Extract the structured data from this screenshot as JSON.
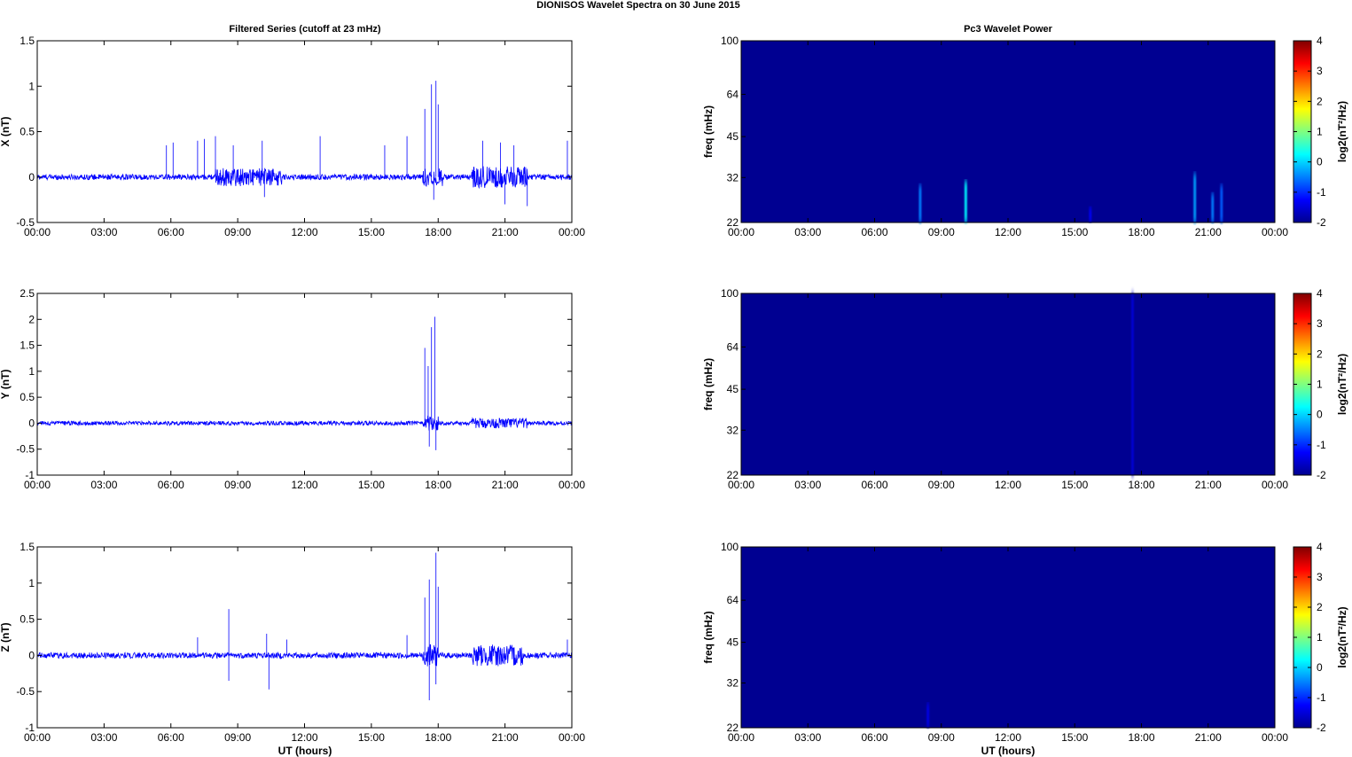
{
  "figure": {
    "title": "DIONISOS Wavelet Spectra on 30 June      2015",
    "left_column_title": "Filtered Series (cutoff at 23 mHz)",
    "right_column_title": "Pc3 Wavelet Power",
    "x_axis_label": "UT (hours)"
  },
  "chart_data": [
    {
      "type": "line",
      "name": "X",
      "ylabel": "X (nT)",
      "xlim_hours": [
        0,
        24
      ],
      "ylim": [
        -0.5,
        1.5
      ],
      "x_ticks": [
        "00:00",
        "03:00",
        "06:00",
        "09:00",
        "12:00",
        "15:00",
        "18:00",
        "21:00",
        "00:00"
      ],
      "y_ticks": [
        -0.5,
        0,
        0.5,
        1,
        1.5
      ],
      "y_tick_labels": [
        "-0.5",
        "0",
        "0.5",
        "1",
        "1.5"
      ],
      "line_color": "#0000ff",
      "baseline_amplitude_nT": 0.03,
      "active_intervals": [
        {
          "start": 8.0,
          "end": 11.0,
          "amplitude": 0.1
        },
        {
          "start": 19.5,
          "end": 22.0,
          "amplitude": 0.12
        },
        {
          "start": 17.3,
          "end": 18.2,
          "amplitude": 0.1
        }
      ],
      "spikes": [
        {
          "x": 5.8,
          "y": 0.35
        },
        {
          "x": 6.1,
          "y": 0.38
        },
        {
          "x": 7.2,
          "y": 0.4
        },
        {
          "x": 7.5,
          "y": 0.42
        },
        {
          "x": 8.0,
          "y": 0.45
        },
        {
          "x": 8.8,
          "y": 0.35
        },
        {
          "x": 10.1,
          "y": 0.4
        },
        {
          "x": 12.7,
          "y": 0.45
        },
        {
          "x": 15.6,
          "y": 0.35
        },
        {
          "x": 16.6,
          "y": 0.45
        },
        {
          "x": 17.4,
          "y": 0.75
        },
        {
          "x": 17.7,
          "y": 1.02
        },
        {
          "x": 17.9,
          "y": 1.06
        },
        {
          "x": 18.0,
          "y": 0.8
        },
        {
          "x": 20.0,
          "y": 0.4
        },
        {
          "x": 20.8,
          "y": 0.38
        },
        {
          "x": 21.4,
          "y": 0.35
        },
        {
          "x": 23.8,
          "y": 0.4
        },
        {
          "x": 10.2,
          "y": -0.22
        },
        {
          "x": 17.8,
          "y": -0.25
        },
        {
          "x": 21.0,
          "y": -0.3
        },
        {
          "x": 22.0,
          "y": -0.32
        }
      ]
    },
    {
      "type": "line",
      "name": "Y",
      "ylabel": "Y (nT)",
      "xlim_hours": [
        0,
        24
      ],
      "ylim": [
        -1,
        2.5
      ],
      "x_ticks": [
        "00:00",
        "03:00",
        "06:00",
        "09:00",
        "12:00",
        "15:00",
        "18:00",
        "21:00",
        "00:00"
      ],
      "y_ticks": [
        -1,
        -0.5,
        0,
        0.5,
        1,
        1.5,
        2,
        2.5
      ],
      "y_tick_labels": [
        "-1",
        "-0.5",
        "0",
        "0.5",
        "1",
        "1.5",
        "2",
        "2.5"
      ],
      "line_color": "#0000ff",
      "baseline_amplitude_nT": 0.04,
      "active_intervals": [
        {
          "start": 19.5,
          "end": 22.0,
          "amplitude": 0.1
        },
        {
          "start": 17.3,
          "end": 18.0,
          "amplitude": 0.15
        }
      ],
      "spikes": [
        {
          "x": 17.4,
          "y": 1.45
        },
        {
          "x": 17.55,
          "y": 1.1
        },
        {
          "x": 17.7,
          "y": 1.85
        },
        {
          "x": 17.85,
          "y": 2.05
        },
        {
          "x": 17.6,
          "y": -0.45
        },
        {
          "x": 17.9,
          "y": -0.52
        }
      ]
    },
    {
      "type": "line",
      "name": "Z",
      "ylabel": "Z (nT)",
      "xlim_hours": [
        0,
        24
      ],
      "ylim": [
        -1,
        1.5
      ],
      "x_ticks": [
        "00:00",
        "03:00",
        "06:00",
        "09:00",
        "12:00",
        "15:00",
        "18:00",
        "21:00",
        "00:00"
      ],
      "y_ticks": [
        -1,
        -0.5,
        0,
        0.5,
        1,
        1.5
      ],
      "y_tick_labels": [
        "-1",
        "-0.5",
        "0",
        "0.5",
        "1",
        "1.5"
      ],
      "line_color": "#0000ff",
      "baseline_amplitude_nT": 0.04,
      "active_intervals": [
        {
          "start": 19.5,
          "end": 21.8,
          "amplitude": 0.15
        },
        {
          "start": 17.3,
          "end": 18.0,
          "amplitude": 0.15
        }
      ],
      "spikes": [
        {
          "x": 7.2,
          "y": 0.25
        },
        {
          "x": 8.6,
          "y": 0.64
        },
        {
          "x": 10.3,
          "y": 0.3
        },
        {
          "x": 11.2,
          "y": 0.22
        },
        {
          "x": 16.6,
          "y": 0.28
        },
        {
          "x": 17.4,
          "y": 0.8
        },
        {
          "x": 17.6,
          "y": 1.05
        },
        {
          "x": 17.9,
          "y": 1.42
        },
        {
          "x": 18.0,
          "y": 0.95
        },
        {
          "x": 23.8,
          "y": 0.22
        },
        {
          "x": 8.6,
          "y": -0.35
        },
        {
          "x": 10.4,
          "y": -0.47
        },
        {
          "x": 17.6,
          "y": -0.62
        },
        {
          "x": 17.9,
          "y": -0.4
        }
      ]
    },
    {
      "type": "heatmap",
      "name": "X-wavelet",
      "ylabel": "freq (mHz)",
      "xlim_hours": [
        0,
        24
      ],
      "ylim_mHz": [
        22,
        100
      ],
      "y_scale": "log",
      "x_ticks": [
        "00:00",
        "03:00",
        "06:00",
        "09:00",
        "12:00",
        "15:00",
        "18:00",
        "21:00",
        "00:00"
      ],
      "y_ticks": [
        22,
        32,
        45,
        64,
        100
      ],
      "colorbar_label": "log2(nT²/Hz)",
      "colorbar_ticks": [
        -2,
        -1,
        0,
        1,
        2,
        3,
        4
      ],
      "clim": [
        -2,
        4
      ],
      "background_value": -1.9,
      "features": [
        {
          "x": 8.05,
          "fmax": 30,
          "value": -0.5
        },
        {
          "x": 10.1,
          "fmax": 31,
          "value": 0.2
        },
        {
          "x": 15.7,
          "fmax": 25,
          "value": -1.3
        },
        {
          "x": 20.4,
          "fmax": 33,
          "value": -0.3
        },
        {
          "x": 21.2,
          "fmax": 28,
          "value": -0.5
        },
        {
          "x": 21.6,
          "fmax": 30,
          "value": -0.7
        }
      ]
    },
    {
      "type": "heatmap",
      "name": "Y-wavelet",
      "ylabel": "freq (mHz)",
      "xlim_hours": [
        0,
        24
      ],
      "ylim_mHz": [
        22,
        100
      ],
      "y_scale": "log",
      "x_ticks": [
        "00:00",
        "03:00",
        "06:00",
        "09:00",
        "12:00",
        "15:00",
        "18:00",
        "21:00",
        "00:00"
      ],
      "y_ticks": [
        22,
        32,
        45,
        64,
        100
      ],
      "colorbar_label": "log2(nT²/Hz)",
      "colorbar_ticks": [
        -2,
        -1,
        0,
        1,
        2,
        3,
        4
      ],
      "clim": [
        -2,
        4
      ],
      "background_value": -1.9,
      "features": [
        {
          "x": 17.6,
          "fmax": 100,
          "value": -1.5
        }
      ]
    },
    {
      "type": "heatmap",
      "name": "Z-wavelet",
      "ylabel": "freq (mHz)",
      "xlim_hours": [
        0,
        24
      ],
      "ylim_mHz": [
        22,
        100
      ],
      "y_scale": "log",
      "x_ticks": [
        "00:00",
        "03:00",
        "06:00",
        "09:00",
        "12:00",
        "15:00",
        "18:00",
        "21:00",
        "00:00"
      ],
      "y_ticks": [
        22,
        32,
        45,
        64,
        100
      ],
      "colorbar_label": "log2(nT²/Hz)",
      "colorbar_ticks": [
        -2,
        -1,
        0,
        1,
        2,
        3,
        4
      ],
      "clim": [
        -2,
        4
      ],
      "background_value": -1.9,
      "features": [
        {
          "x": 8.4,
          "fmax": 27,
          "value": -1.4
        }
      ]
    }
  ]
}
